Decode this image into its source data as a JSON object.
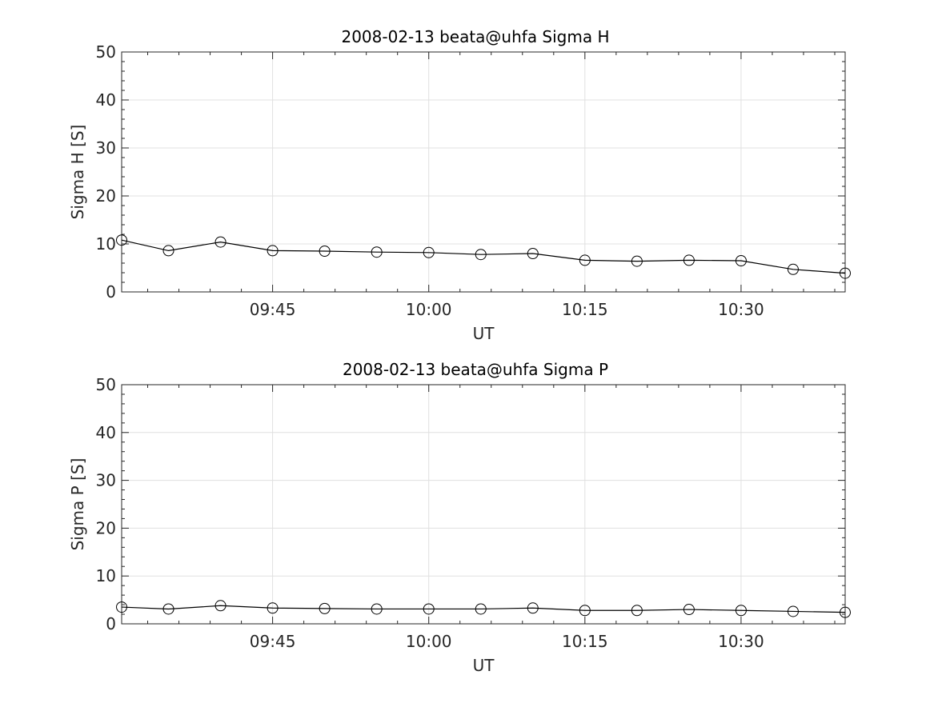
{
  "chart_data": [
    {
      "type": "line",
      "title": "2008-02-13  beata@uhfa Sigma H",
      "xlabel": "UT",
      "ylabel": "Sigma H [S]",
      "x_units": "minutes after 09:00 UT",
      "xlim": [
        30.5,
        100
      ],
      "ylim": [
        0,
        50
      ],
      "yticks": [
        0,
        10,
        20,
        30,
        40,
        50
      ],
      "xticks": [
        {
          "value": 45,
          "label": "09:45"
        },
        {
          "value": 60,
          "label": "10:00"
        },
        {
          "value": 75,
          "label": "10:15"
        },
        {
          "value": 90,
          "label": "10:30"
        }
      ],
      "grid": true,
      "marker": "circle",
      "color": "#000000",
      "x": [
        30.5,
        35,
        40,
        45,
        50,
        55,
        60,
        65,
        70,
        75,
        80,
        85,
        90,
        95,
        100
      ],
      "values": [
        10.8,
        8.6,
        10.4,
        8.6,
        8.5,
        8.3,
        8.2,
        7.8,
        8.0,
        6.6,
        6.4,
        6.6,
        6.5,
        4.7,
        3.9
      ]
    },
    {
      "type": "line",
      "title": "2008-02-13  beata@uhfa Sigma P",
      "xlabel": "UT",
      "ylabel": "Sigma P [S]",
      "x_units": "minutes after 09:00 UT",
      "xlim": [
        30.5,
        100
      ],
      "ylim": [
        0,
        50
      ],
      "yticks": [
        0,
        10,
        20,
        30,
        40,
        50
      ],
      "xticks": [
        {
          "value": 45,
          "label": "09:45"
        },
        {
          "value": 60,
          "label": "10:00"
        },
        {
          "value": 75,
          "label": "10:15"
        },
        {
          "value": 90,
          "label": "10:30"
        }
      ],
      "grid": true,
      "marker": "circle",
      "color": "#000000",
      "x": [
        30.5,
        35,
        40,
        45,
        50,
        55,
        60,
        65,
        70,
        75,
        80,
        85,
        90,
        95,
        100
      ],
      "values": [
        3.5,
        3.1,
        3.8,
        3.3,
        3.2,
        3.1,
        3.1,
        3.1,
        3.3,
        2.8,
        2.8,
        3.0,
        2.8,
        2.6,
        2.4
      ]
    }
  ]
}
